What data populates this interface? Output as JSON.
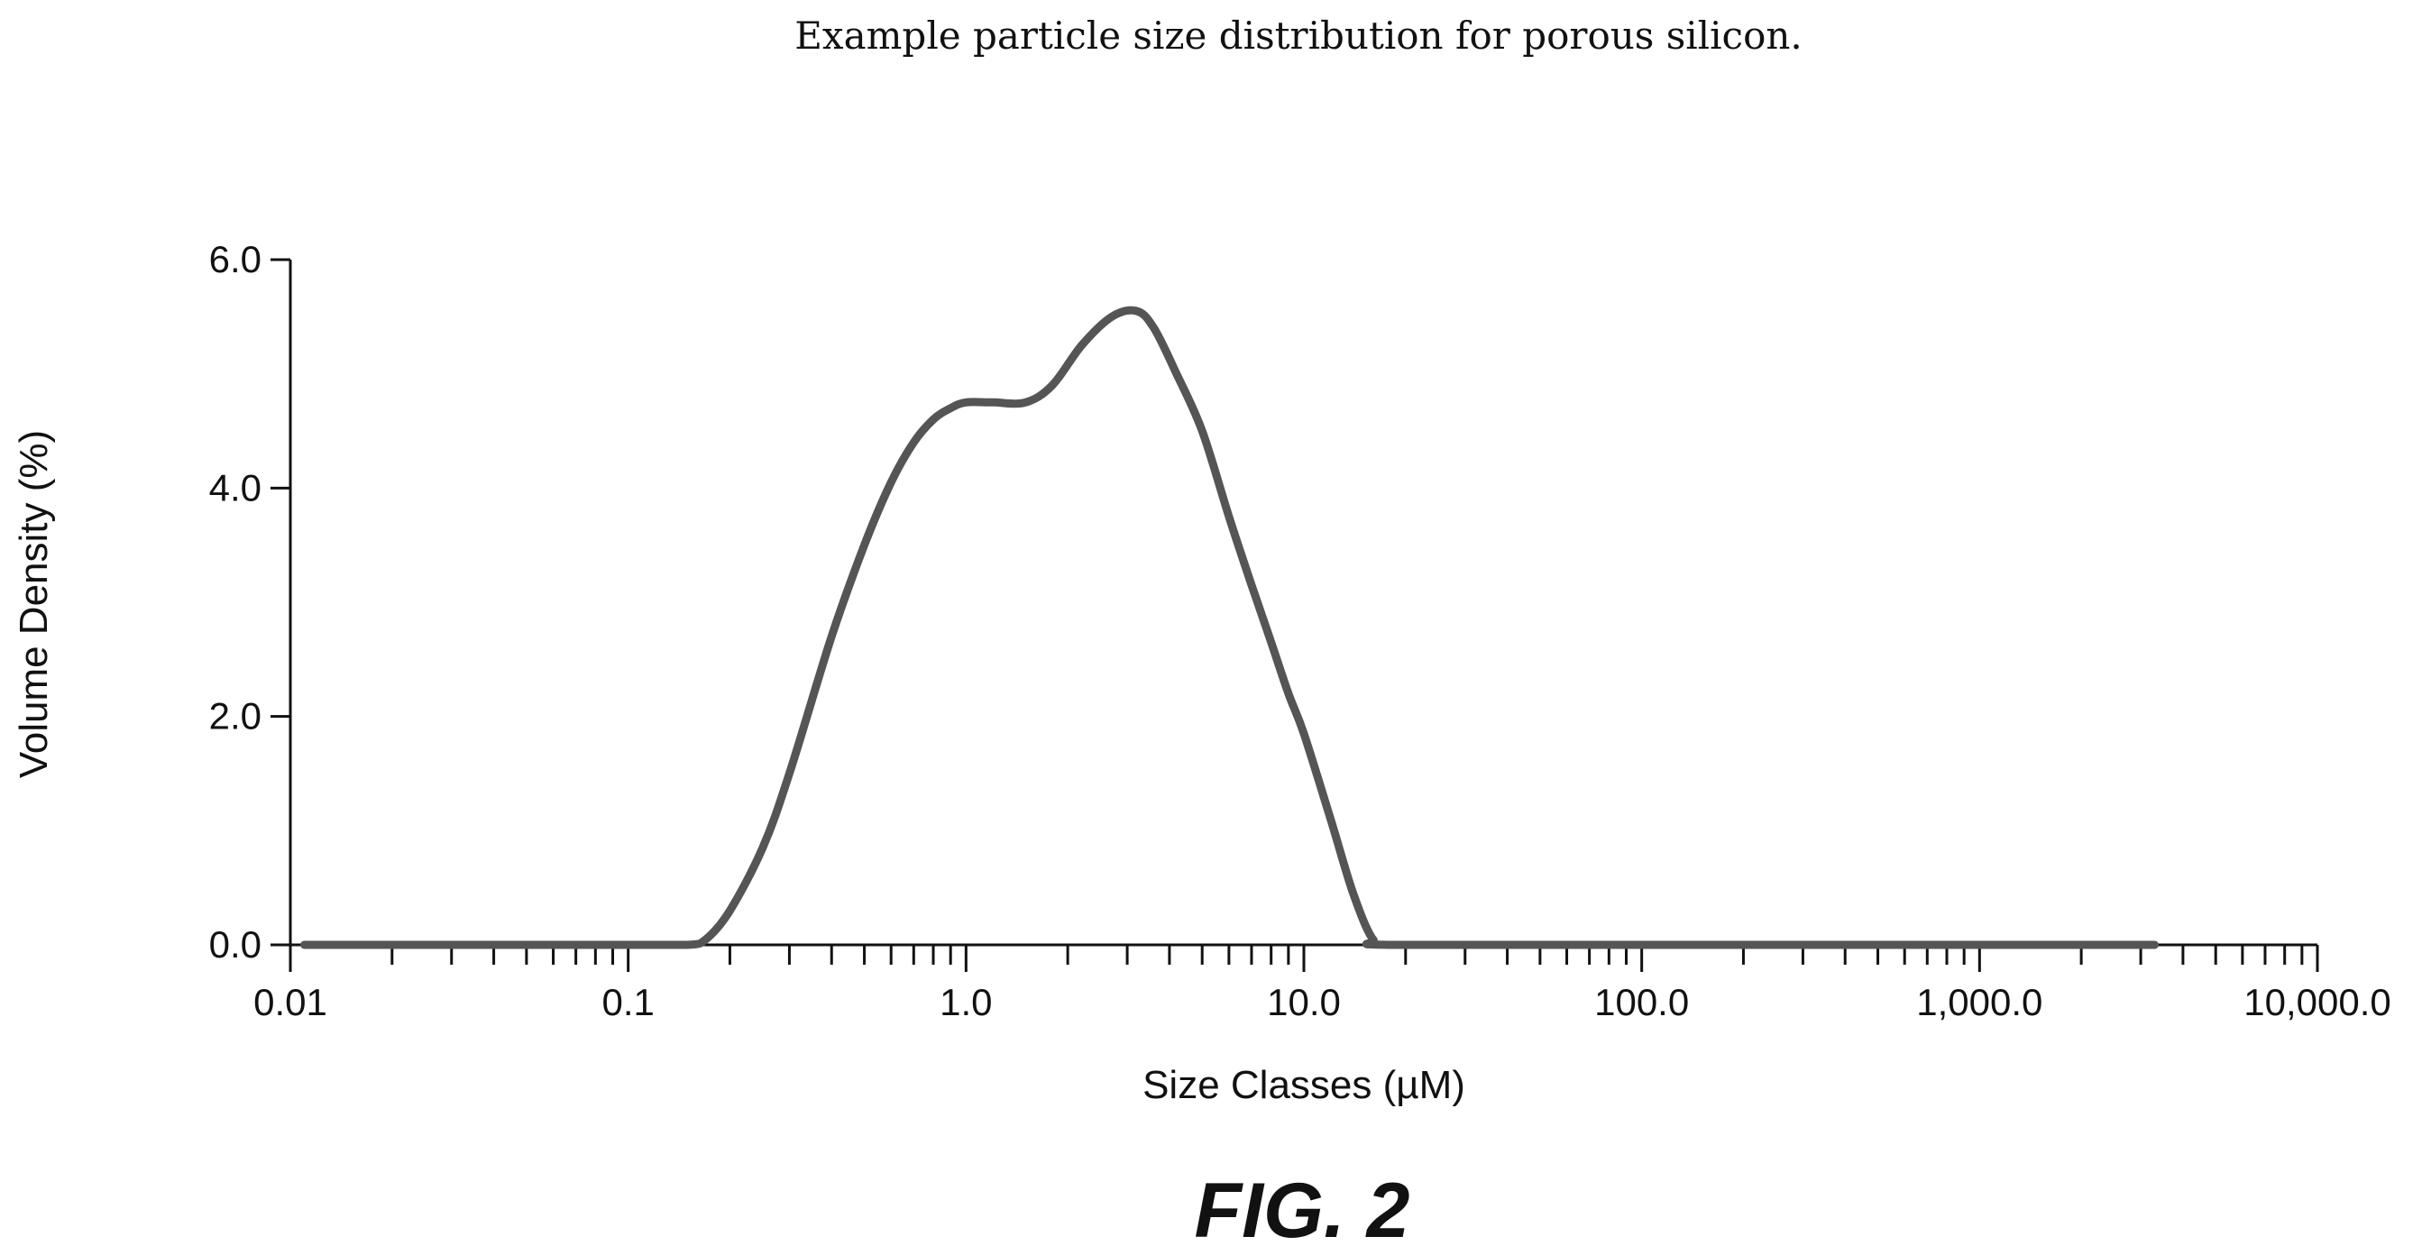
{
  "chart_data": {
    "type": "line",
    "title": "Example particle size distribution for porous silicon.",
    "xlabel": "Size Classes (µM)",
    "ylabel": "Volume Density (%)",
    "x_scale": "log",
    "xlim": [
      0.01,
      10000
    ],
    "ylim": [
      0,
      6
    ],
    "x_ticks": [
      0.01,
      0.1,
      1,
      10,
      100,
      1000,
      10000
    ],
    "x_tick_labels": [
      "0.01",
      "0.1",
      "1.0",
      "10.0",
      "100.0",
      "1,000.0",
      "10,000.0"
    ],
    "y_ticks": [
      0,
      2,
      4,
      6
    ],
    "y_tick_labels": [
      "0.0",
      "2.0",
      "4.0",
      "6.0"
    ],
    "grid": false,
    "legend": "none",
    "series": [
      {
        "x": [
          0.011,
          0.05,
          0.1,
          0.15,
          0.17,
          0.2,
          0.25,
          0.3,
          0.4,
          0.5,
          0.6,
          0.7,
          0.8,
          0.9,
          1.0,
          1.2,
          1.5,
          1.8,
          2.2,
          2.7,
          3.2,
          3.6,
          4.2,
          5.0,
          6.0,
          7.0,
          8.0,
          9.0,
          10.0,
          12.0,
          14.0,
          16.0,
          18.0,
          100.0,
          1000.0,
          3300.0
        ],
        "y": [
          0,
          0,
          0,
          0,
          0.05,
          0.3,
          0.85,
          1.5,
          2.7,
          3.5,
          4.05,
          4.4,
          4.6,
          4.7,
          4.75,
          4.75,
          4.75,
          4.9,
          5.25,
          5.5,
          5.55,
          5.4,
          5.0,
          4.5,
          3.75,
          3.15,
          2.65,
          2.2,
          1.85,
          1.1,
          0.45,
          0.05,
          0,
          0,
          0,
          0
        ]
      }
    ]
  },
  "figure_label": "FIG. 2"
}
